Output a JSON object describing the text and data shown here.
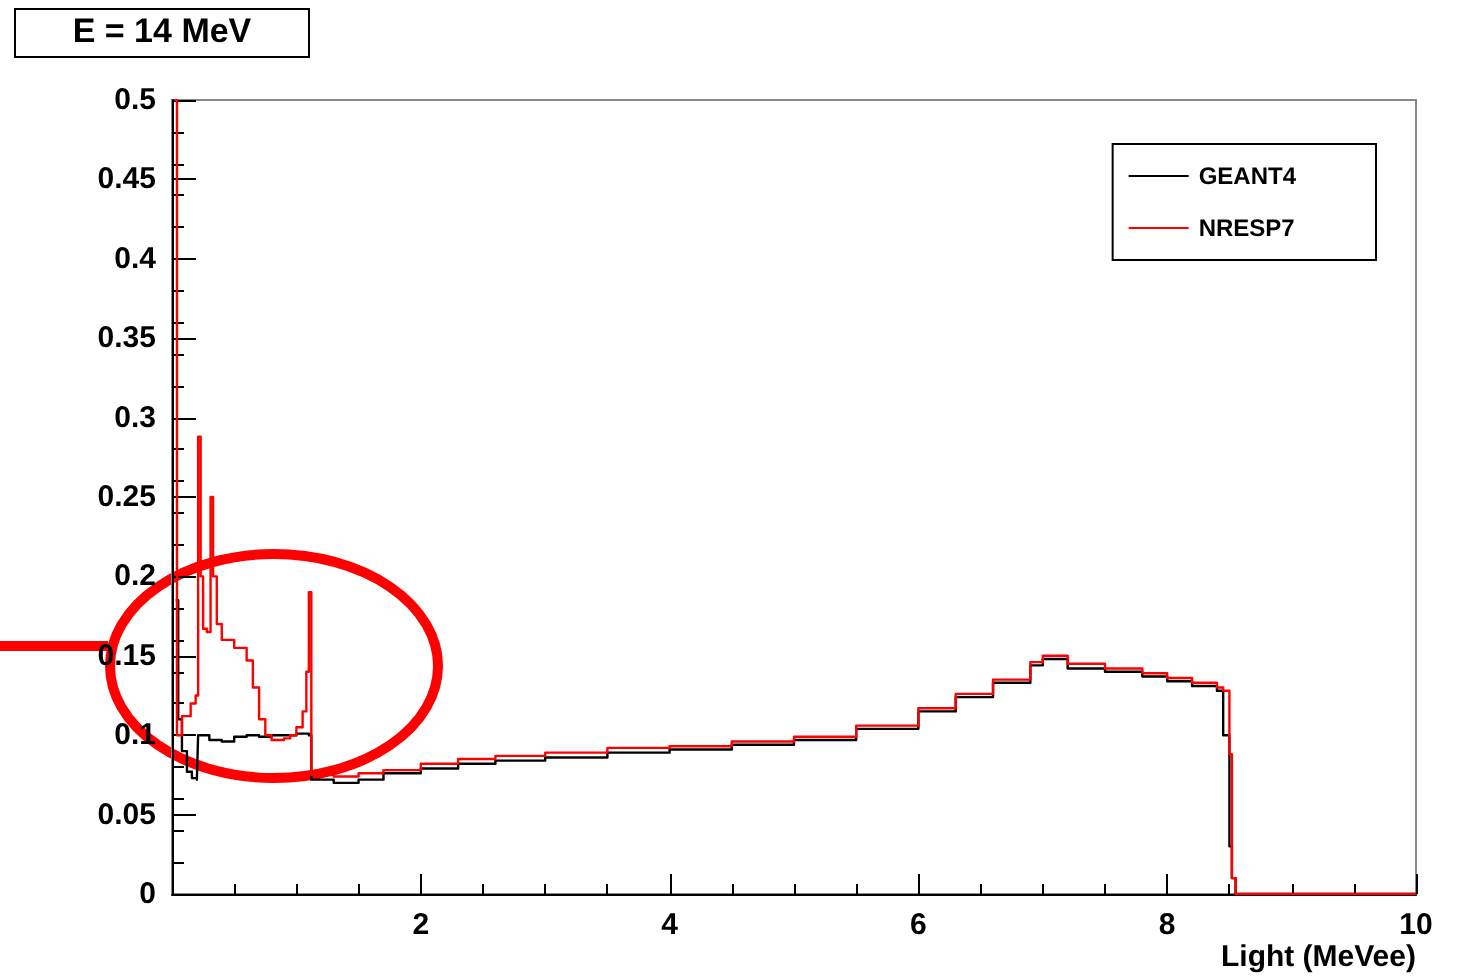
{
  "chart_data": {
    "type": "step",
    "title": "E = 14 MeV",
    "xlabel": "Light (MeVee)",
    "xlim": [
      0,
      10
    ],
    "xticks": [
      {
        "value": 0,
        "label": null
      },
      2,
      4,
      6,
      8,
      10
    ],
    "ylim": [
      0,
      0.5
    ],
    "yticks": [
      0,
      0.05,
      0.1,
      0.15,
      0.2,
      0.25,
      0.3,
      0.35,
      0.4,
      0.45,
      0.5
    ],
    "legend": "top right",
    "grid": false,
    "series": [
      {
        "name": "GEANT4",
        "color": "#000000",
        "x": [
          0.03,
          0.05,
          0.08,
          0.12,
          0.16,
          0.2,
          0.21,
          0.3,
          0.4,
          0.5,
          0.6,
          0.7,
          0.8,
          0.9,
          1.0,
          1.1,
          1.12,
          1.3,
          1.5,
          1.7,
          2.0,
          2.3,
          2.6,
          3.0,
          3.5,
          4.0,
          4.5,
          5.0,
          5.5,
          6.0,
          6.3,
          6.6,
          6.9,
          7.0,
          7.2,
          7.5,
          7.8,
          8.0,
          8.2,
          8.4,
          8.45,
          8.5,
          8.52,
          8.55,
          10
        ],
        "values": [
          0.185,
          0.11,
          0.09,
          0.077,
          0.073,
          0.072,
          0.1,
          0.097,
          0.096,
          0.099,
          0.1,
          0.099,
          0.1,
          0.1,
          0.101,
          0.1,
          0.072,
          0.07,
          0.072,
          0.076,
          0.079,
          0.082,
          0.084,
          0.086,
          0.089,
          0.091,
          0.094,
          0.097,
          0.104,
          0.115,
          0.124,
          0.133,
          0.144,
          0.148,
          0.142,
          0.14,
          0.137,
          0.134,
          0.131,
          0.128,
          0.1,
          0.03,
          0.01,
          0,
          0
        ]
      },
      {
        "name": "NRESP7",
        "color": "#ff0000",
        "x": [
          0.02,
          0.04,
          0.08,
          0.15,
          0.19,
          0.21,
          0.23,
          0.25,
          0.28,
          0.31,
          0.33,
          0.36,
          0.4,
          0.5,
          0.6,
          0.65,
          0.7,
          0.75,
          0.8,
          0.9,
          0.95,
          1.0,
          1.05,
          1.08,
          1.1,
          1.12,
          1.3,
          1.5,
          1.7,
          2.0,
          2.3,
          2.6,
          3.0,
          3.5,
          4.0,
          4.5,
          5.0,
          5.5,
          6.0,
          6.3,
          6.6,
          6.9,
          7.0,
          7.2,
          7.5,
          7.8,
          8.0,
          8.2,
          8.4,
          8.45,
          8.5,
          8.52,
          8.55,
          10
        ],
        "values": [
          0.5,
          0.1,
          0.112,
          0.12,
          0.125,
          0.288,
          0.2,
          0.167,
          0.165,
          0.25,
          0.2,
          0.17,
          0.16,
          0.155,
          0.147,
          0.13,
          0.11,
          0.1,
          0.097,
          0.098,
          0.1,
          0.105,
          0.115,
          0.14,
          0.19,
          0.075,
          0.074,
          0.076,
          0.078,
          0.082,
          0.085,
          0.087,
          0.089,
          0.092,
          0.093,
          0.096,
          0.099,
          0.106,
          0.117,
          0.126,
          0.135,
          0.146,
          0.15,
          0.145,
          0.142,
          0.139,
          0.136,
          0.133,
          0.13,
          0.128,
          0.088,
          0.01,
          0,
          0
        ]
      }
    ]
  }
}
